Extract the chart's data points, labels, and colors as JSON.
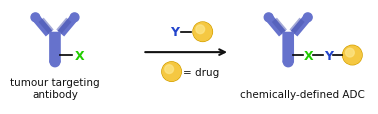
{
  "antibody_color": "#6672cc",
  "antibody_dark": "#4a55b0",
  "drug_color": "#f5c842",
  "drug_highlight": "#fde68a",
  "drug_shadow": "#d4a000",
  "x_color": "#22cc00",
  "y_color": "#2244cc",
  "arrow_color": "#111111",
  "text_color": "#111111",
  "label1": "tumour targeting\nantibody",
  "label2": "chemically-defined ADC",
  "drug_label": "= drug",
  "label1_fontsize": 7.5,
  "label2_fontsize": 7.5,
  "bg_color": "#ffffff",
  "fig_width": 3.78,
  "fig_height": 1.15
}
